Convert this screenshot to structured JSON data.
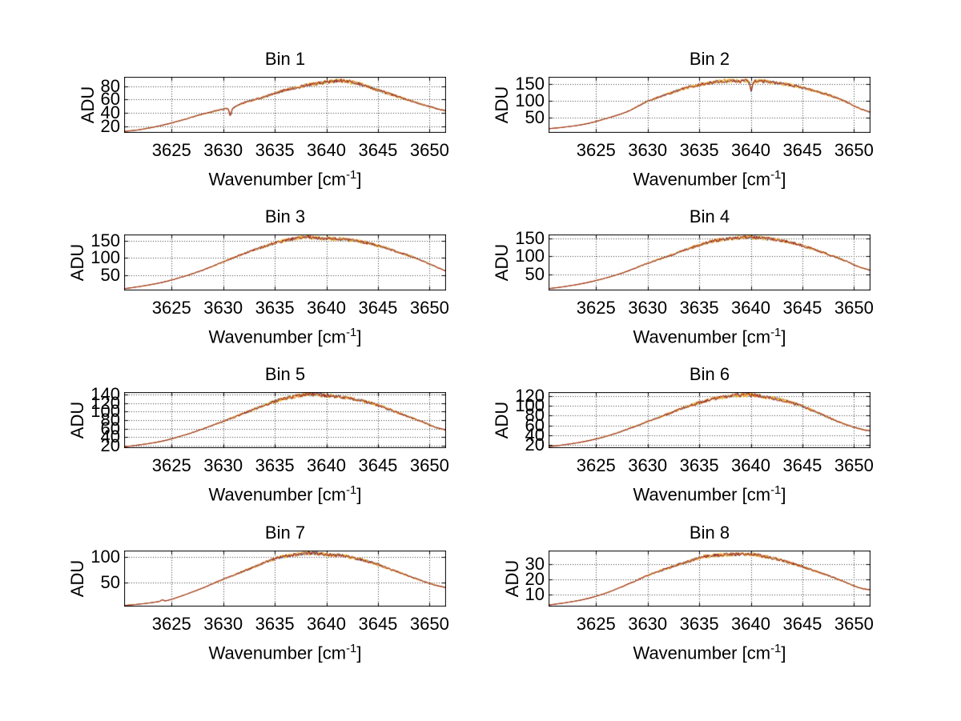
{
  "figure": {
    "background": "#ffffff"
  },
  "axes_common": {
    "ylabel": "ADU",
    "xlabel": {
      "prefix": "Wavenumber [cm",
      "sup": "-1",
      "suffix": "]"
    },
    "xlim": [
      3620.4,
      3651.6
    ],
    "xticks": [
      3625,
      3630,
      3635,
      3640,
      3645,
      3650
    ],
    "grid": "on",
    "legend": "none"
  },
  "colors": {
    "axis": "#000000",
    "grid_dots": "#3c3c3c",
    "text": "#000000",
    "trace_layers": [
      "#4a9fd4",
      "#eec21f",
      "#f08420",
      "#8f1a28"
    ],
    "trace_primary": "#8f1a28"
  },
  "chart_data": [
    {
      "type": "line",
      "title": "Bin 1",
      "ylabel": "ADU",
      "ylim": [
        10,
        94
      ],
      "yticks": [
        20,
        40,
        60,
        80
      ],
      "anchors": [
        [
          3620.4,
          12
        ],
        [
          3622,
          15
        ],
        [
          3624,
          21
        ],
        [
          3626,
          29
        ],
        [
          3628,
          38
        ],
        [
          3630.2,
          46
        ],
        [
          3630.5,
          45
        ],
        [
          3630.7,
          36
        ],
        [
          3630.9,
          46
        ],
        [
          3632,
          55
        ],
        [
          3634,
          64
        ],
        [
          3636,
          74
        ],
        [
          3638,
          81
        ],
        [
          3640,
          86
        ],
        [
          3641.5,
          88
        ],
        [
          3643,
          84
        ],
        [
          3645,
          74
        ],
        [
          3647,
          64
        ],
        [
          3649,
          54
        ],
        [
          3651,
          45
        ],
        [
          3651.6,
          43
        ]
      ]
    },
    {
      "type": "line",
      "title": "Bin 2",
      "ylabel": "ADU",
      "ylim": [
        6,
        170
      ],
      "yticks": [
        50,
        100,
        150
      ],
      "anchors": [
        [
          3620.4,
          18
        ],
        [
          3622,
          23
        ],
        [
          3624,
          32
        ],
        [
          3626,
          48
        ],
        [
          3628,
          68
        ],
        [
          3630,
          98
        ],
        [
          3632,
          120
        ],
        [
          3634,
          140
        ],
        [
          3636,
          152
        ],
        [
          3637.5,
          158
        ],
        [
          3639,
          157
        ],
        [
          3639.85,
          155
        ],
        [
          3640.05,
          128
        ],
        [
          3640.25,
          154
        ],
        [
          3641,
          157
        ],
        [
          3642,
          154
        ],
        [
          3643,
          150
        ],
        [
          3644.5,
          142
        ],
        [
          3646,
          130
        ],
        [
          3647.5,
          117
        ],
        [
          3649,
          100
        ],
        [
          3650.5,
          78
        ],
        [
          3651.6,
          66
        ]
      ]
    },
    {
      "type": "line",
      "title": "Bin 3",
      "ylabel": "ADU",
      "ylim": [
        5,
        168
      ],
      "yticks": [
        50,
        100,
        150
      ],
      "anchors": [
        [
          3620.4,
          10
        ],
        [
          3622,
          17
        ],
        [
          3624,
          28
        ],
        [
          3626,
          44
        ],
        [
          3628,
          64
        ],
        [
          3630,
          88
        ],
        [
          3632,
          112
        ],
        [
          3634,
          133
        ],
        [
          3635.5,
          147
        ],
        [
          3637,
          156
        ],
        [
          3638,
          160
        ],
        [
          3639.5,
          157
        ],
        [
          3641,
          155
        ],
        [
          3642.5,
          151
        ],
        [
          3644,
          143
        ],
        [
          3645.5,
          131
        ],
        [
          3647,
          116
        ],
        [
          3648.5,
          101
        ],
        [
          3650,
          82
        ],
        [
          3651.6,
          61
        ]
      ]
    },
    {
      "type": "line",
      "title": "Bin 4",
      "ylabel": "ADU",
      "ylim": [
        5,
        160
      ],
      "yticks": [
        50,
        100,
        150
      ],
      "anchors": [
        [
          3620.4,
          10
        ],
        [
          3622,
          16
        ],
        [
          3624,
          26
        ],
        [
          3626,
          40
        ],
        [
          3628,
          58
        ],
        [
          3630,
          80
        ],
        [
          3632,
          100
        ],
        [
          3634,
          121
        ],
        [
          3636,
          139
        ],
        [
          3637.5,
          147
        ],
        [
          3639,
          151
        ],
        [
          3640,
          152
        ],
        [
          3641.5,
          149
        ],
        [
          3643,
          143
        ],
        [
          3644.5,
          133
        ],
        [
          3646,
          120
        ],
        [
          3647.5,
          105
        ],
        [
          3649,
          89
        ],
        [
          3650.5,
          70
        ],
        [
          3651.6,
          61
        ]
      ]
    },
    {
      "type": "line",
      "title": "Bin 5",
      "ylabel": "ADU",
      "ylim": [
        14,
        146
      ],
      "yticks": [
        20,
        40,
        60,
        80,
        100,
        120,
        140
      ],
      "anchors": [
        [
          3620.4,
          17
        ],
        [
          3622,
          22
        ],
        [
          3624,
          30
        ],
        [
          3626,
          43
        ],
        [
          3628,
          59
        ],
        [
          3630,
          77
        ],
        [
          3632,
          96
        ],
        [
          3634,
          115
        ],
        [
          3635.5,
          128
        ],
        [
          3637,
          136
        ],
        [
          3638,
          140
        ],
        [
          3639,
          140
        ],
        [
          3640,
          138
        ],
        [
          3641.5,
          134
        ],
        [
          3643,
          128
        ],
        [
          3644.5,
          119
        ],
        [
          3646,
          106
        ],
        [
          3647.5,
          92
        ],
        [
          3649,
          79
        ],
        [
          3650.5,
          64
        ],
        [
          3651.6,
          56
        ]
      ]
    },
    {
      "type": "line",
      "title": "Bin 6",
      "ylabel": "ADU",
      "ylim": [
        14,
        128
      ],
      "yticks": [
        20,
        40,
        60,
        80,
        100,
        120
      ],
      "anchors": [
        [
          3620.4,
          17
        ],
        [
          3622,
          21
        ],
        [
          3624,
          28
        ],
        [
          3626,
          38
        ],
        [
          3628,
          52
        ],
        [
          3630,
          68
        ],
        [
          3632,
          84
        ],
        [
          3634,
          100
        ],
        [
          3636,
          112
        ],
        [
          3637.5,
          119
        ],
        [
          3639,
          122
        ],
        [
          3640.5,
          121
        ],
        [
          3642,
          116
        ],
        [
          3643.5,
          109
        ],
        [
          3645,
          99
        ],
        [
          3646.5,
          86
        ],
        [
          3648,
          72
        ],
        [
          3649.5,
          60
        ],
        [
          3651,
          51
        ],
        [
          3651.6,
          49
        ]
      ]
    },
    {
      "type": "line",
      "title": "Bin 7",
      "ylabel": "ADU",
      "ylim": [
        3,
        112
      ],
      "yticks": [
        50,
        100
      ],
      "anchors": [
        [
          3620.4,
          5
        ],
        [
          3622,
          8
        ],
        [
          3623.8,
          13
        ],
        [
          3624.1,
          16
        ],
        [
          3624.4,
          14
        ],
        [
          3626,
          24
        ],
        [
          3628,
          39
        ],
        [
          3630,
          56
        ],
        [
          3632,
          72
        ],
        [
          3634,
          88
        ],
        [
          3635.5,
          99
        ],
        [
          3637,
          104
        ],
        [
          3638.5,
          107
        ],
        [
          3640,
          104
        ],
        [
          3641.5,
          102
        ],
        [
          3643,
          96
        ],
        [
          3644.5,
          88
        ],
        [
          3646,
          77
        ],
        [
          3647.5,
          66
        ],
        [
          3649,
          55
        ],
        [
          3650.5,
          45
        ],
        [
          3651.6,
          40
        ]
      ]
    },
    {
      "type": "line",
      "title": "Bin 8",
      "ylabel": "ADU",
      "ylim": [
        2,
        39
      ],
      "yticks": [
        10,
        20,
        30
      ],
      "anchors": [
        [
          3620.4,
          3
        ],
        [
          3622,
          4.5
        ],
        [
          3624,
          7
        ],
        [
          3626,
          11
        ],
        [
          3628,
          16.5
        ],
        [
          3630,
          22.5
        ],
        [
          3632,
          27.5
        ],
        [
          3634,
          32
        ],
        [
          3635.5,
          35
        ],
        [
          3637,
          36
        ],
        [
          3638.5,
          36.5
        ],
        [
          3640,
          36.5
        ],
        [
          3641.5,
          35
        ],
        [
          3643,
          32.5
        ],
        [
          3644.5,
          29.5
        ],
        [
          3646,
          26
        ],
        [
          3647.5,
          22.5
        ],
        [
          3649,
          18.5
        ],
        [
          3650.5,
          14.5
        ],
        [
          3651.6,
          13
        ]
      ]
    }
  ]
}
